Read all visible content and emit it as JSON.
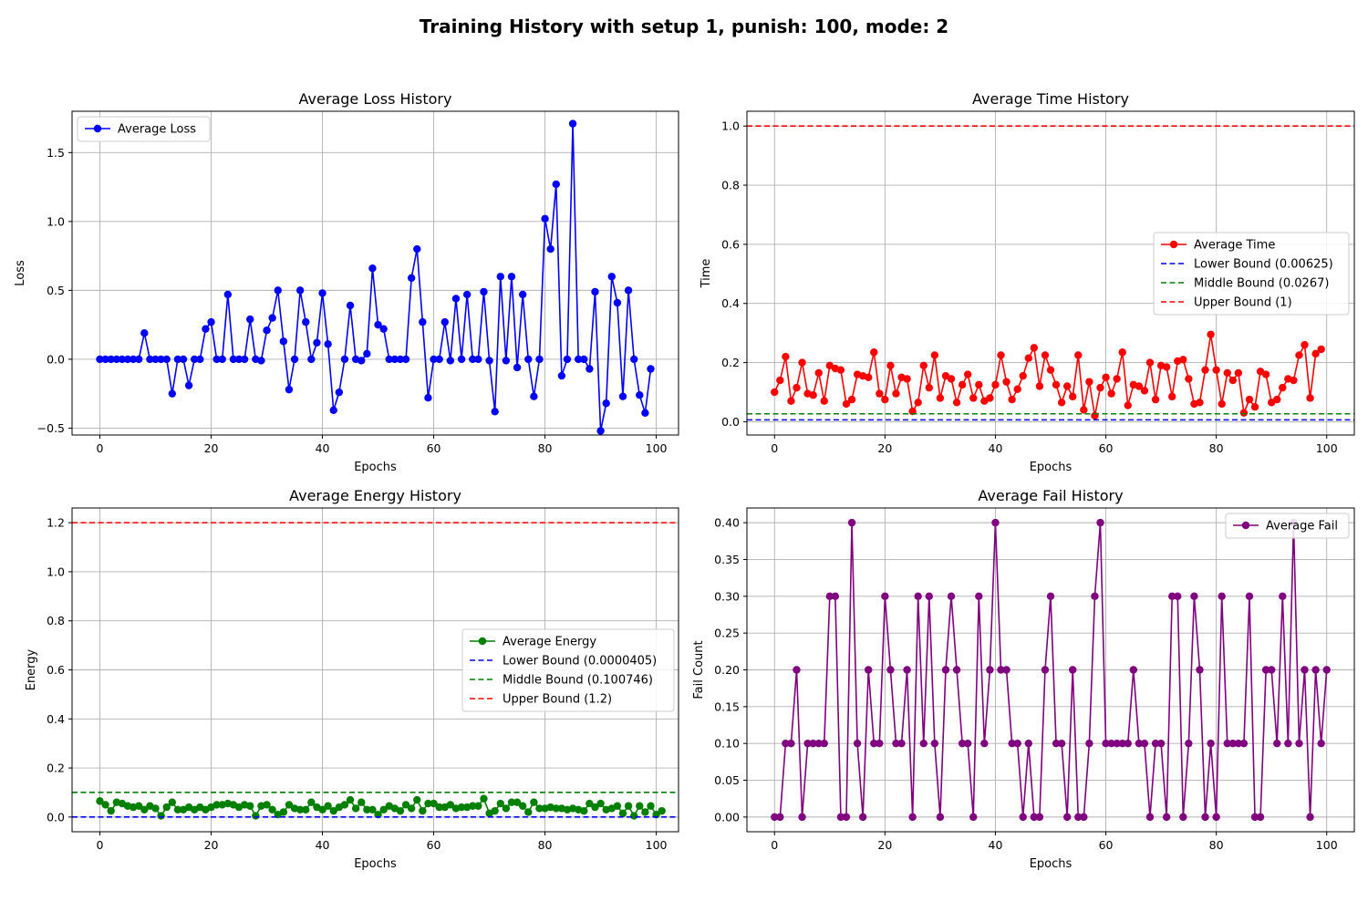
{
  "figure": {
    "title": "Training History with setup 1, punish: 100, mode: 2"
  },
  "chart_data": [
    {
      "type": "line",
      "title": "Average Loss History",
      "xlabel": "Epochs",
      "ylabel": "Loss",
      "xlim": [
        -5,
        104
      ],
      "ylim": [
        -0.55,
        1.8
      ],
      "xticks": [
        0,
        20,
        40,
        60,
        80,
        100
      ],
      "yticks": [
        -0.5,
        0.0,
        0.5,
        1.0,
        1.5
      ],
      "ytick_labels": [
        "−0.5",
        "0.0",
        "0.5",
        "1.0",
        "1.5"
      ],
      "grid": true,
      "legend_position": "upper left",
      "series": [
        {
          "name": "Average Loss",
          "color": "#0000ff",
          "marker": true,
          "x_start": 0,
          "values": [
            0,
            0,
            0,
            0,
            0,
            0,
            0,
            0,
            0.19,
            0,
            0,
            0,
            0,
            -0.25,
            0,
            0,
            -0.19,
            0,
            0,
            0.22,
            0.27,
            0,
            0,
            0.47,
            0,
            0,
            0,
            0.29,
            0,
            -0.01,
            0.21,
            0.3,
            0.5,
            0.13,
            -0.22,
            0,
            0.5,
            0.27,
            0,
            0.12,
            0.48,
            0.11,
            -0.37,
            -0.24,
            0,
            0.39,
            0,
            -0.01,
            0.04,
            0.66,
            0.25,
            0.22,
            0,
            0,
            0,
            0,
            0.59,
            0.8,
            0.27,
            -0.28,
            0,
            0,
            0.27,
            -0.01,
            0.44,
            0,
            0.47,
            0,
            0,
            0.49,
            -0.01,
            -0.38,
            0.6,
            -0.01,
            0.6,
            -0.06,
            0.47,
            0,
            -0.27,
            0,
            1.02,
            0.8,
            1.27,
            -0.12,
            0,
            1.71,
            0,
            0,
            -0.07,
            0.49,
            -0.52,
            -0.32,
            0.6,
            0.41,
            -0.27,
            0.5,
            0,
            -0.26,
            -0.39,
            -0.07
          ]
        }
      ]
    },
    {
      "type": "line",
      "title": "Average Time History",
      "xlabel": "Epochs",
      "ylabel": "Time",
      "xlim": [
        -5,
        105
      ],
      "ylim": [
        -0.045,
        1.05
      ],
      "xticks": [
        0,
        20,
        40,
        60,
        80,
        100
      ],
      "yticks": [
        0.0,
        0.2,
        0.4,
        0.6,
        0.8,
        1.0
      ],
      "ytick_labels": [
        "0.0",
        "0.2",
        "0.4",
        "0.6",
        "0.8",
        "1.0"
      ],
      "grid": true,
      "legend_position": "center right",
      "series": [
        {
          "name": "Average Time",
          "color": "#ff0000",
          "marker": true,
          "x_start": 0,
          "values": [
            0.1,
            0.14,
            0.22,
            0.07,
            0.115,
            0.2,
            0.095,
            0.09,
            0.165,
            0.07,
            0.19,
            0.18,
            0.175,
            0.06,
            0.075,
            0.16,
            0.155,
            0.15,
            0.235,
            0.095,
            0.075,
            0.19,
            0.095,
            0.15,
            0.145,
            0.035,
            0.065,
            0.19,
            0.115,
            0.225,
            0.08,
            0.155,
            0.145,
            0.065,
            0.125,
            0.16,
            0.08,
            0.125,
            0.07,
            0.08,
            0.125,
            0.225,
            0.135,
            0.075,
            0.11,
            0.155,
            0.215,
            0.25,
            0.12,
            0.225,
            0.175,
            0.125,
            0.065,
            0.12,
            0.085,
            0.225,
            0.04,
            0.135,
            0.02,
            0.115,
            0.15,
            0.095,
            0.145,
            0.235,
            0.055,
            0.125,
            0.12,
            0.105,
            0.2,
            0.075,
            0.19,
            0.185,
            0.085,
            0.205,
            0.21,
            0.145,
            0.06,
            0.065,
            0.175,
            0.295,
            0.175,
            0.06,
            0.165,
            0.14,
            0.165,
            0.03,
            0.075,
            0.05,
            0.17,
            0.16,
            0.065,
            0.075,
            0.115,
            0.145,
            0.14,
            0.225,
            0.26,
            0.08,
            0.23,
            0.245
          ]
        },
        {
          "name": "Lower Bound (0.00625)",
          "color": "#0000ff",
          "dashed": true,
          "hline": 0.00625
        },
        {
          "name": "Middle Bound (0.0267)",
          "color": "#008000",
          "dashed": true,
          "hline": 0.0267
        },
        {
          "name": "Upper Bound (1)",
          "color": "#ff0000",
          "dashed": true,
          "hline": 1
        }
      ]
    },
    {
      "type": "line",
      "title": "Average Energy History",
      "xlabel": "Epochs",
      "ylabel": "Energy",
      "xlim": [
        -5,
        104
      ],
      "ylim": [
        -0.06,
        1.26
      ],
      "xticks": [
        0,
        20,
        40,
        60,
        80,
        100
      ],
      "yticks": [
        0.0,
        0.2,
        0.4,
        0.6,
        0.8,
        1.0,
        1.2
      ],
      "ytick_labels": [
        "0.0",
        "0.2",
        "0.4",
        "0.6",
        "0.8",
        "1.0",
        "1.2"
      ],
      "grid": true,
      "legend_position": "center right",
      "series": [
        {
          "name": "Average Energy",
          "color": "#008000",
          "marker": true,
          "x_start": 0,
          "values": [
            0.065,
            0.05,
            0.025,
            0.06,
            0.055,
            0.045,
            0.04,
            0.045,
            0.03,
            0.045,
            0.035,
            0.005,
            0.04,
            0.06,
            0.03,
            0.03,
            0.04,
            0.03,
            0.04,
            0.03,
            0.04,
            0.05,
            0.05,
            0.055,
            0.05,
            0.04,
            0.05,
            0.045,
            0.005,
            0.045,
            0.05,
            0.03,
            0.01,
            0.02,
            0.05,
            0.035,
            0.03,
            0.03,
            0.06,
            0.04,
            0.03,
            0.045,
            0.025,
            0.04,
            0.05,
            0.07,
            0.035,
            0.06,
            0.03,
            0.03,
            0.01,
            0.03,
            0.045,
            0.035,
            0.025,
            0.05,
            0.035,
            0.07,
            0.025,
            0.055,
            0.055,
            0.04,
            0.04,
            0.05,
            0.035,
            0.04,
            0.04,
            0.045,
            0.045,
            0.075,
            0.015,
            0.025,
            0.055,
            0.035,
            0.06,
            0.06,
            0.045,
            0.02,
            0.06,
            0.035,
            0.035,
            0.04,
            0.035,
            0.035,
            0.03,
            0.035,
            0.03,
            0.025,
            0.055,
            0.04,
            0.055,
            0.03,
            0.035,
            0.045,
            0.015,
            0.045,
            0.005,
            0.045,
            0.02,
            0.045,
            0.01,
            0.025
          ]
        },
        {
          "name": "Lower Bound (0.0000405)",
          "color": "#0000ff",
          "dashed": true,
          "hline": 4.05e-05
        },
        {
          "name": "Middle Bound (0.100746)",
          "color": "#008000",
          "dashed": true,
          "hline": 0.100746
        },
        {
          "name": "Upper Bound (1.2)",
          "color": "#ff0000",
          "dashed": true,
          "hline": 1.2
        }
      ]
    },
    {
      "type": "line",
      "title": "Average Fail History",
      "xlabel": "Epochs",
      "ylabel": "Fail Count",
      "xlim": [
        -5,
        105
      ],
      "ylim": [
        -0.02,
        0.42
      ],
      "xticks": [
        0,
        20,
        40,
        60,
        80,
        100
      ],
      "yticks": [
        0.0,
        0.05,
        0.1,
        0.15,
        0.2,
        0.25,
        0.3,
        0.35,
        0.4
      ],
      "ytick_labels": [
        "0.00",
        "0.05",
        "0.10",
        "0.15",
        "0.20",
        "0.25",
        "0.30",
        "0.35",
        "0.40"
      ],
      "grid": true,
      "legend_position": "upper right",
      "series": [
        {
          "name": "Average Fail",
          "color": "#800080",
          "marker": true,
          "x_start": 0,
          "values": [
            0,
            0,
            0.1,
            0.1,
            0.2,
            0,
            0.1,
            0.1,
            0.1,
            0.1,
            0.3,
            0.3,
            0,
            0,
            0.4,
            0.1,
            0,
            0.2,
            0.1,
            0.1,
            0.3,
            0.2,
            0.1,
            0.1,
            0.2,
            0,
            0.3,
            0.1,
            0.3,
            0.1,
            0,
            0.2,
            0.3,
            0.2,
            0.1,
            0.1,
            0,
            0.3,
            0.1,
            0.2,
            0.4,
            0.2,
            0.2,
            0.1,
            0.1,
            0,
            0.1,
            0,
            0,
            0.2,
            0.3,
            0.1,
            0.1,
            0,
            0.2,
            0,
            0,
            0.1,
            0.3,
            0.4,
            0.1,
            0.1,
            0.1,
            0.1,
            0.1,
            0.2,
            0.1,
            0.1,
            0,
            0.1,
            0.1,
            0,
            0.3,
            0.3,
            0,
            0.1,
            0.3,
            0.2,
            0,
            0.1,
            0,
            0.3,
            0.1,
            0.1,
            0.1,
            0.1,
            0.3,
            0,
            0,
            0.2,
            0.2,
            0.1,
            0.3,
            0.1,
            0.4,
            0.1,
            0.2,
            0,
            0.2,
            0.1,
            0.2
          ]
        }
      ]
    }
  ]
}
